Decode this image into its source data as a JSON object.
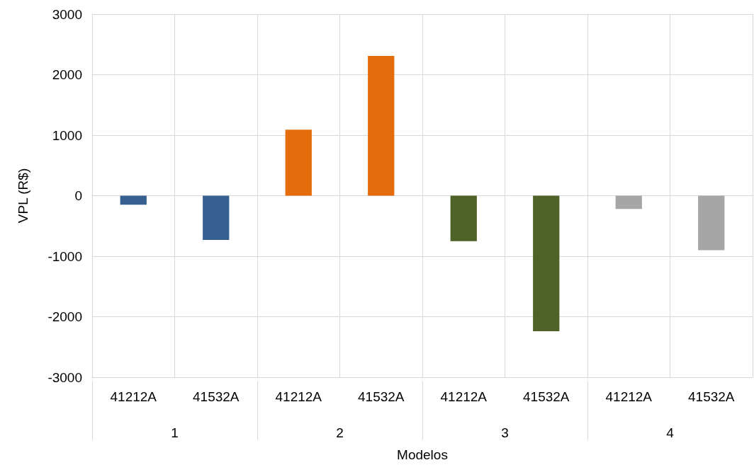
{
  "chart_data": {
    "type": "bar",
    "xlabel": "Modelos",
    "ylabel": "VPL (R$)",
    "categories": [
      "41212A",
      "41532A",
      "41212A",
      "41532A",
      "41212A",
      "41532A",
      "41212A",
      "41532A"
    ],
    "values": [
      -150,
      -730,
      1090,
      2310,
      -750,
      -2240,
      -220,
      -900
    ],
    "colors": [
      "#35608f",
      "#35608f",
      "#e46c0a",
      "#e46c0a",
      "#4f6228",
      "#4f6228",
      "#a6a6a6",
      "#a6a6a6"
    ],
    "annotations": [
      "1",
      "2",
      "3",
      "4"
    ],
    "ylim": [
      -3000,
      3000
    ],
    "yticks": [
      -3000,
      -2000,
      -1000,
      0,
      1000,
      2000,
      3000
    ],
    "grid": true
  }
}
